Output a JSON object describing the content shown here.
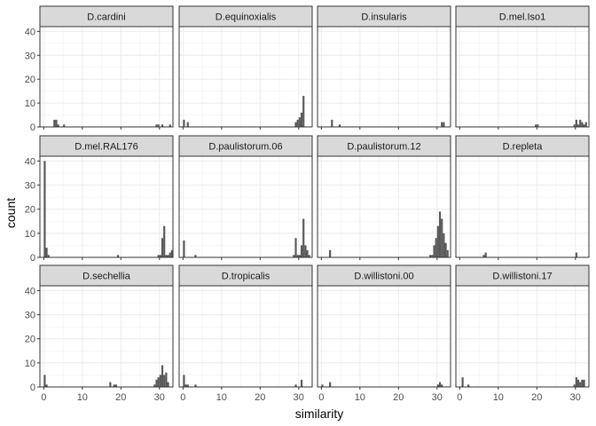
{
  "chart_data": {
    "type": "bar",
    "subtype": "faceted-histogram",
    "xlabel": "similarity",
    "ylabel": "count",
    "xlim": [
      -1,
      33.5
    ],
    "ylim": [
      0,
      42
    ],
    "x_ticks": [
      0,
      10,
      20,
      30
    ],
    "y_ticks": [
      0,
      10,
      20,
      30,
      40
    ],
    "bin_width": 0.5,
    "bar_color": "#595959",
    "strip_fill": "#d9d9d9",
    "panels": [
      {
        "name": "D.cardini",
        "bins": [
          [
            2.75,
            3
          ],
          [
            3.25,
            3
          ],
          [
            3.75,
            1
          ],
          [
            5.25,
            1
          ],
          [
            29.25,
            1
          ],
          [
            29.75,
            1
          ],
          [
            30.75,
            1
          ],
          [
            32.75,
            1
          ]
        ]
      },
      {
        "name": "D.equinoxialis",
        "bins": [
          [
            0.25,
            3
          ],
          [
            1.25,
            2
          ],
          [
            29.25,
            2
          ],
          [
            29.75,
            3
          ],
          [
            30.25,
            4
          ],
          [
            30.75,
            6
          ],
          [
            31.25,
            13
          ]
        ]
      },
      {
        "name": "D.insularis",
        "bins": [
          [
            2.75,
            3
          ],
          [
            4.75,
            1
          ],
          [
            31.25,
            2
          ],
          [
            31.75,
            2
          ]
        ]
      },
      {
        "name": "D.mel.Iso1",
        "bins": [
          [
            19.75,
            1
          ],
          [
            20.25,
            1
          ],
          [
            29.75,
            1
          ],
          [
            30.25,
            3
          ],
          [
            30.75,
            1
          ],
          [
            31.25,
            3
          ],
          [
            31.75,
            2
          ],
          [
            32.25,
            1
          ],
          [
            32.75,
            2
          ]
        ]
      },
      {
        "name": "D.mel.RAL176",
        "bins": [
          [
            0.25,
            40
          ],
          [
            0.75,
            4
          ],
          [
            1.25,
            1
          ],
          [
            19.25,
            1
          ],
          [
            29.75,
            1
          ],
          [
            30.25,
            1
          ],
          [
            30.75,
            8
          ],
          [
            31.25,
            13
          ],
          [
            31.75,
            1
          ],
          [
            32.25,
            1
          ],
          [
            32.75,
            2
          ],
          [
            33.25,
            3
          ]
        ]
      },
      {
        "name": "D.paulistorum.06",
        "bins": [
          [
            0.25,
            7
          ],
          [
            3.25,
            1
          ],
          [
            28.75,
            1
          ],
          [
            29.25,
            8
          ],
          [
            29.75,
            1
          ],
          [
            30.25,
            1
          ],
          [
            30.75,
            5
          ],
          [
            31.25,
            16
          ],
          [
            31.75,
            5
          ],
          [
            32.25,
            3
          ],
          [
            32.75,
            1
          ]
        ]
      },
      {
        "name": "D.paulistorum.12",
        "bins": [
          [
            2.25,
            3
          ],
          [
            28.25,
            1
          ],
          [
            28.75,
            1
          ],
          [
            29.25,
            5
          ],
          [
            29.75,
            8
          ],
          [
            30.25,
            13
          ],
          [
            30.75,
            19
          ],
          [
            31.25,
            16
          ],
          [
            31.75,
            10
          ],
          [
            32.25,
            6
          ],
          [
            32.75,
            3
          ]
        ]
      },
      {
        "name": "D.repleta",
        "bins": [
          [
            6.25,
            1
          ],
          [
            6.75,
            2
          ],
          [
            30.25,
            2
          ]
        ]
      },
      {
        "name": "D.sechellia",
        "bins": [
          [
            0.25,
            5
          ],
          [
            0.75,
            1
          ],
          [
            17.25,
            2
          ],
          [
            18.25,
            1
          ],
          [
            18.75,
            1
          ],
          [
            28.75,
            1
          ],
          [
            29.25,
            3
          ],
          [
            29.75,
            4
          ],
          [
            30.25,
            5
          ],
          [
            30.75,
            9
          ],
          [
            31.25,
            5
          ],
          [
            31.75,
            6
          ],
          [
            32.25,
            2
          ]
        ]
      },
      {
        "name": "D.tropicalis",
        "bins": [
          [
            0.25,
            5
          ],
          [
            0.75,
            1
          ],
          [
            1.25,
            1
          ],
          [
            3.25,
            1
          ],
          [
            29.25,
            1
          ],
          [
            30.75,
            3
          ]
        ]
      },
      {
        "name": "D.willistoni.00",
        "bins": [
          [
            0.25,
            1
          ],
          [
            2.25,
            2
          ],
          [
            30.25,
            1
          ],
          [
            30.75,
            2
          ],
          [
            31.25,
            1
          ]
        ]
      },
      {
        "name": "D.willistoni.17",
        "bins": [
          [
            0.75,
            4
          ],
          [
            2.25,
            1
          ],
          [
            29.75,
            1
          ],
          [
            30.25,
            4
          ],
          [
            30.75,
            3
          ],
          [
            31.25,
            2
          ],
          [
            31.75,
            3
          ],
          [
            32.25,
            3
          ]
        ]
      }
    ]
  }
}
